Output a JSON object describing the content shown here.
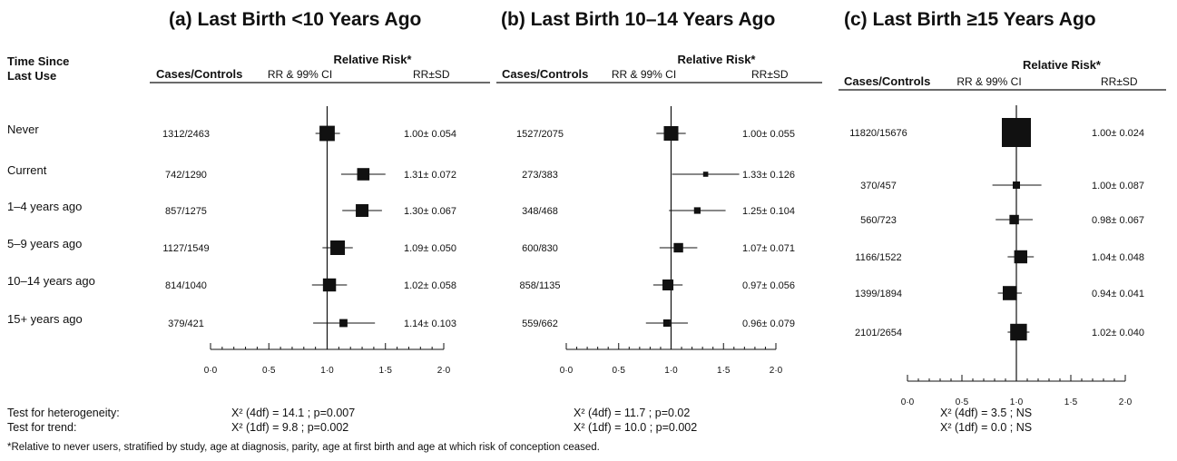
{
  "row_header": {
    "line1": "Time Since",
    "line2": "Last Use"
  },
  "row_labels": [
    "Never",
    "Current",
    "1–4 years ago",
    "5–9 years ago",
    "10–14 years ago",
    "15+ years ago"
  ],
  "column_headers": {
    "cases_controls": "Cases/Controls",
    "relative_risk": "Relative Risk*",
    "rr_ci": "RR & 99% CI",
    "rr_sd": "RR±SD"
  },
  "tests": {
    "heterogeneity_label": "Test for heterogeneity:",
    "trend_label": "Test for trend:"
  },
  "footnote": "*Relative to never users, stratified by study, age at diagnosis, parity, age at first birth and age at which risk of conception ceased.",
  "chart_data": [
    {
      "type": "forest",
      "title": "(a) Last Birth <10 Years Ago",
      "xlim": [
        0,
        2
      ],
      "x_ticks": [
        "0·0",
        "0·5",
        "1·0",
        "1·5",
        "2·0"
      ],
      "reference_line": 1.0,
      "rows": [
        {
          "cases_controls": "1312/2463",
          "rr": 1.0,
          "ci": [
            0.9,
            1.11
          ],
          "weight": 4.2,
          "rr_sd": "1.00± 0.054"
        },
        {
          "cases_controls": "742/1290",
          "rr": 1.31,
          "ci": [
            1.12,
            1.5
          ],
          "weight": 3.4,
          "rr_sd": "1.31± 0.072"
        },
        {
          "cases_controls": "857/1275",
          "rr": 1.3,
          "ci": [
            1.13,
            1.47
          ],
          "weight": 3.5,
          "rr_sd": "1.30± 0.067"
        },
        {
          "cases_controls": "1127/1549",
          "rr": 1.09,
          "ci": [
            0.96,
            1.22
          ],
          "weight": 4.0,
          "rr_sd": "1.09± 0.050"
        },
        {
          "cases_controls": "814/1040",
          "rr": 1.02,
          "ci": [
            0.87,
            1.17
          ],
          "weight": 3.6,
          "rr_sd": "1.02± 0.058"
        },
        {
          "cases_controls": "379/421",
          "rr": 1.14,
          "ci": [
            0.88,
            1.41
          ],
          "weight": 2.2,
          "rr_sd": "1.14± 0.103"
        }
      ],
      "heterogeneity": "X² (4df) = 14.1 ; p=0.007",
      "trend": "X² (1df) = 9.8   ; p=0.002"
    },
    {
      "type": "forest",
      "title": "(b) Last Birth 10–14 Years Ago",
      "xlim": [
        0,
        2
      ],
      "x_ticks": [
        "0·0",
        "0·5",
        "1·0",
        "1·5",
        "2·0"
      ],
      "reference_line": 1.0,
      "rows": [
        {
          "cases_controls": "1527/2075",
          "rr": 1.0,
          "ci": [
            0.86,
            1.14
          ],
          "weight": 4.0,
          "rr_sd": "1.00± 0.055"
        },
        {
          "cases_controls": "273/383",
          "rr": 1.33,
          "ci": [
            1.01,
            1.65
          ],
          "weight": 1.4,
          "rr_sd": "1.33± 0.126"
        },
        {
          "cases_controls": "348/468",
          "rr": 1.25,
          "ci": [
            0.98,
            1.52
          ],
          "weight": 1.8,
          "rr_sd": "1.25± 0.104"
        },
        {
          "cases_controls": "600/830",
          "rr": 1.07,
          "ci": [
            0.89,
            1.25
          ],
          "weight": 2.6,
          "rr_sd": "1.07± 0.071"
        },
        {
          "cases_controls": "858/1135",
          "rr": 0.97,
          "ci": [
            0.83,
            1.11
          ],
          "weight": 3.0,
          "rr_sd": "0.97± 0.056"
        },
        {
          "cases_controls": "559/662",
          "rr": 0.96,
          "ci": [
            0.76,
            1.16
          ],
          "weight": 2.0,
          "rr_sd": "0.96± 0.079"
        }
      ],
      "heterogeneity": "X² (4df) = 11.7 ; p=0.02",
      "trend": "X² (1df) = 10.0 ; p=0.002"
    },
    {
      "type": "forest",
      "title": "(c) Last Birth ≥15 Years Ago",
      "xlim": [
        0,
        2
      ],
      "x_ticks": [
        "0·0",
        "0·5",
        "1·0",
        "1·5",
        "2·0"
      ],
      "reference_line": 1.0,
      "rows": [
        {
          "cases_controls": "11820/15676",
          "rr": 1.0,
          "ci": [
            0.94,
            1.06
          ],
          "weight": 8.0,
          "rr_sd": "1.00± 0.024"
        },
        {
          "cases_controls": "370/457",
          "rr": 1.0,
          "ci": [
            0.78,
            1.23
          ],
          "weight": 2.0,
          "rr_sd": "1.00± 0.087"
        },
        {
          "cases_controls": "560/723",
          "rr": 0.98,
          "ci": [
            0.81,
            1.15
          ],
          "weight": 2.6,
          "rr_sd": "0.98± 0.067"
        },
        {
          "cases_controls": "1166/1522",
          "rr": 1.04,
          "ci": [
            0.92,
            1.16
          ],
          "weight": 3.6,
          "rr_sd": "1.04± 0.048"
        },
        {
          "cases_controls": "1399/1894",
          "rr": 0.94,
          "ci": [
            0.83,
            1.05
          ],
          "weight": 3.9,
          "rr_sd": "0.94± 0.041"
        },
        {
          "cases_controls": "2101/2654",
          "rr": 1.02,
          "ci": [
            0.92,
            1.12
          ],
          "weight": 4.6,
          "rr_sd": "1.02± 0.040"
        }
      ],
      "heterogeneity": "X² (4df) = 3.5  ; NS",
      "trend": "X² (1df) = 0.0  ; NS"
    }
  ]
}
